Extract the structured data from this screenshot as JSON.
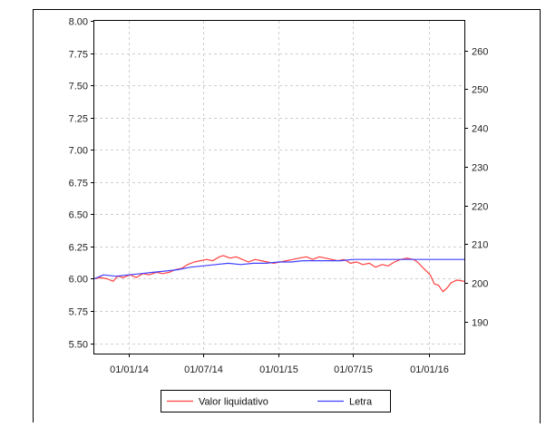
{
  "chart_data": {
    "type": "line",
    "x_axis": {
      "type": "date",
      "ticks": [
        "2014-01-01",
        "2014-07-01",
        "2015-01-01",
        "2015-07-01",
        "2016-01-01"
      ],
      "tick_labels": [
        "01/01/14",
        "01/07/14",
        "01/01/15",
        "01/07/15",
        "01/01/16"
      ],
      "range": [
        "2013-10-10",
        "2016-03-28"
      ]
    },
    "y_left": {
      "range": [
        5.42,
        8.0
      ],
      "ticks": [
        5.5,
        5.75,
        6.0,
        6.25,
        6.5,
        6.75,
        7.0,
        7.25,
        7.5,
        7.75,
        8.0
      ],
      "tick_labels": [
        "5.50",
        "5.75",
        "6.00",
        "6.25",
        "6.50",
        "6.75",
        "7.00",
        "7.25",
        "7.50",
        "7.75",
        "8.00"
      ]
    },
    "y_right": {
      "range": [
        181.8,
        267.6
      ],
      "ticks": [
        190,
        200,
        210,
        220,
        230,
        240,
        250,
        260
      ],
      "tick_labels": [
        "190",
        "200",
        "210",
        "220",
        "230",
        "240",
        "250",
        "260"
      ]
    },
    "grid": true,
    "legend_position": "bottom",
    "series": [
      {
        "name": "Valor liquidativo",
        "axis": "left",
        "color": "#ff4040",
        "points": [
          [
            "2013-10-10",
            6.0
          ],
          [
            "2013-10-25",
            6.01
          ],
          [
            "2013-11-10",
            6.0
          ],
          [
            "2013-11-25",
            5.98
          ],
          [
            "2013-12-05",
            6.02
          ],
          [
            "2013-12-20",
            6.01
          ],
          [
            "2014-01-05",
            6.03
          ],
          [
            "2014-01-20",
            6.01
          ],
          [
            "2014-02-05",
            6.04
          ],
          [
            "2014-02-20",
            6.03
          ],
          [
            "2014-03-10",
            6.05
          ],
          [
            "2014-03-25",
            6.04
          ],
          [
            "2014-04-10",
            6.05
          ],
          [
            "2014-04-25",
            6.07
          ],
          [
            "2014-05-10",
            6.08
          ],
          [
            "2014-05-25",
            6.11
          ],
          [
            "2014-06-10",
            6.13
          ],
          [
            "2014-06-25",
            6.14
          ],
          [
            "2014-07-10",
            6.15
          ],
          [
            "2014-07-25",
            6.14
          ],
          [
            "2014-08-10",
            6.17
          ],
          [
            "2014-08-20",
            6.18
          ],
          [
            "2014-09-05",
            6.16
          ],
          [
            "2014-09-20",
            6.17
          ],
          [
            "2014-10-05",
            6.15
          ],
          [
            "2014-10-20",
            6.13
          ],
          [
            "2014-11-05",
            6.15
          ],
          [
            "2014-11-20",
            6.14
          ],
          [
            "2014-12-05",
            6.13
          ],
          [
            "2014-12-20",
            6.12
          ],
          [
            "2015-01-05",
            6.13
          ],
          [
            "2015-01-20",
            6.14
          ],
          [
            "2015-02-05",
            6.15
          ],
          [
            "2015-02-20",
            6.16
          ],
          [
            "2015-03-10",
            6.17
          ],
          [
            "2015-03-25",
            6.15
          ],
          [
            "2015-04-10",
            6.17
          ],
          [
            "2015-04-25",
            6.16
          ],
          [
            "2015-05-10",
            6.15
          ],
          [
            "2015-05-25",
            6.14
          ],
          [
            "2015-06-10",
            6.15
          ],
          [
            "2015-06-25",
            6.12
          ],
          [
            "2015-07-10",
            6.13
          ],
          [
            "2015-07-25",
            6.11
          ],
          [
            "2015-08-10",
            6.12
          ],
          [
            "2015-08-25",
            6.09
          ],
          [
            "2015-09-10",
            6.11
          ],
          [
            "2015-09-25",
            6.1
          ],
          [
            "2015-10-10",
            6.13
          ],
          [
            "2015-10-25",
            6.15
          ],
          [
            "2015-11-10",
            6.16
          ],
          [
            "2015-11-25",
            6.15
          ],
          [
            "2015-12-05",
            6.13
          ],
          [
            "2015-12-20",
            6.08
          ],
          [
            "2016-01-05",
            6.03
          ],
          [
            "2016-01-15",
            5.96
          ],
          [
            "2016-01-25",
            5.95
          ],
          [
            "2016-02-05",
            5.9
          ],
          [
            "2016-02-15",
            5.93
          ],
          [
            "2016-02-25",
            5.97
          ],
          [
            "2016-03-10",
            5.99
          ],
          [
            "2016-03-28",
            5.98
          ]
        ]
      },
      {
        "name": "Letra",
        "axis": "left",
        "color": "#4040ff",
        "points": [
          [
            "2013-10-10",
            6.0
          ],
          [
            "2013-11-01",
            6.03
          ],
          [
            "2013-12-01",
            6.02
          ],
          [
            "2014-01-01",
            6.03
          ],
          [
            "2014-02-01",
            6.04
          ],
          [
            "2014-03-01",
            6.05
          ],
          [
            "2014-04-01",
            6.06
          ],
          [
            "2014-05-01",
            6.07
          ],
          [
            "2014-06-01",
            6.09
          ],
          [
            "2014-07-01",
            6.1
          ],
          [
            "2014-08-01",
            6.11
          ],
          [
            "2014-09-01",
            6.12
          ],
          [
            "2014-10-01",
            6.11
          ],
          [
            "2014-11-01",
            6.12
          ],
          [
            "2014-12-01",
            6.12
          ],
          [
            "2015-01-01",
            6.13
          ],
          [
            "2015-02-01",
            6.13
          ],
          [
            "2015-03-01",
            6.14
          ],
          [
            "2015-04-01",
            6.14
          ],
          [
            "2015-05-01",
            6.14
          ],
          [
            "2015-06-01",
            6.14
          ],
          [
            "2015-07-01",
            6.15
          ],
          [
            "2015-08-01",
            6.15
          ],
          [
            "2015-09-01",
            6.15
          ],
          [
            "2015-10-01",
            6.15
          ],
          [
            "2015-11-01",
            6.15
          ],
          [
            "2015-12-01",
            6.15
          ],
          [
            "2016-01-01",
            6.15
          ],
          [
            "2016-03-28",
            6.15
          ]
        ]
      }
    ]
  }
}
